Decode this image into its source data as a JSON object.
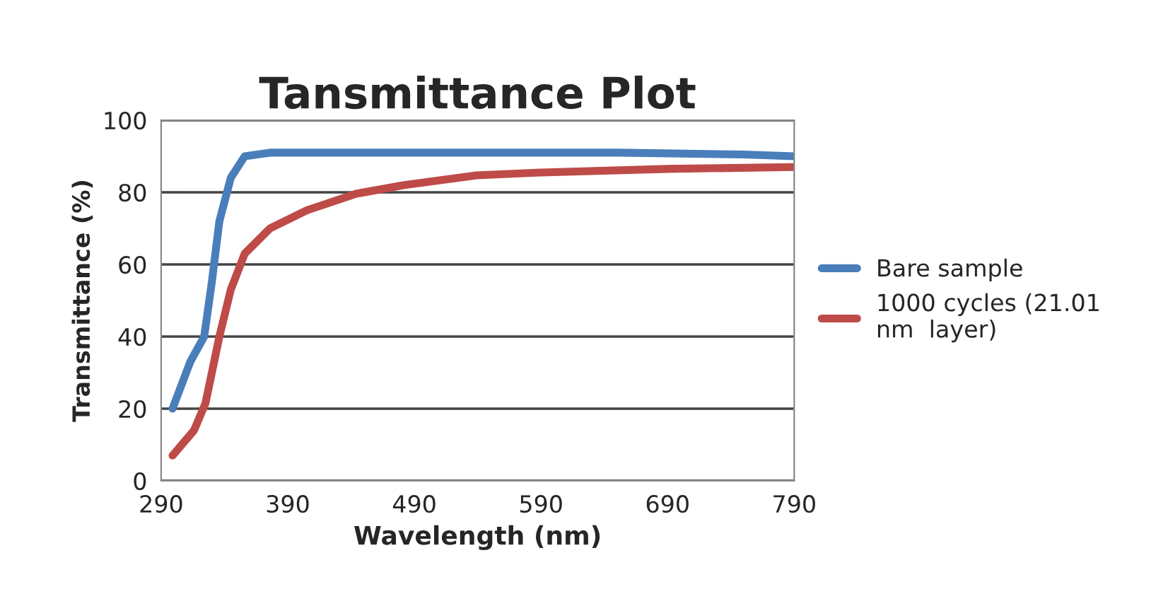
{
  "chart_data": {
    "type": "line",
    "title": "Tansmittance Plot",
    "xlabel": "Wavelength (nm)",
    "ylabel": "Transmittance (%)",
    "xlim": [
      290,
      790
    ],
    "xticks": [
      290,
      390,
      490,
      590,
      690,
      790
    ],
    "ylim": [
      0,
      100
    ],
    "yticks": [
      0,
      20,
      40,
      60,
      80,
      100
    ],
    "grid": "y",
    "legend": "right",
    "marker": "none",
    "line_style": "solid",
    "series": [
      {
        "name": "Bare sample",
        "color": "#4a7ebb",
        "x": [
          299,
          313,
          324,
          330,
          336,
          345,
          356,
          376,
          450,
          550,
          650,
          750,
          790
        ],
        "values": [
          20,
          33,
          40,
          55,
          72,
          84,
          90,
          91,
          91,
          91,
          91,
          90.5,
          90
        ]
      },
      {
        "name": "1000 cycles (21.01 nm  layer)",
        "color": "#be4b48",
        "x": [
          299,
          316,
          325,
          336,
          345,
          356,
          376,
          405,
          444,
          482,
          539,
          590,
          690,
          790
        ],
        "values": [
          7,
          14,
          21.5,
          40,
          53,
          63,
          70,
          75,
          79.6,
          82,
          84.7,
          85.5,
          86.5,
          87
        ]
      }
    ]
  }
}
